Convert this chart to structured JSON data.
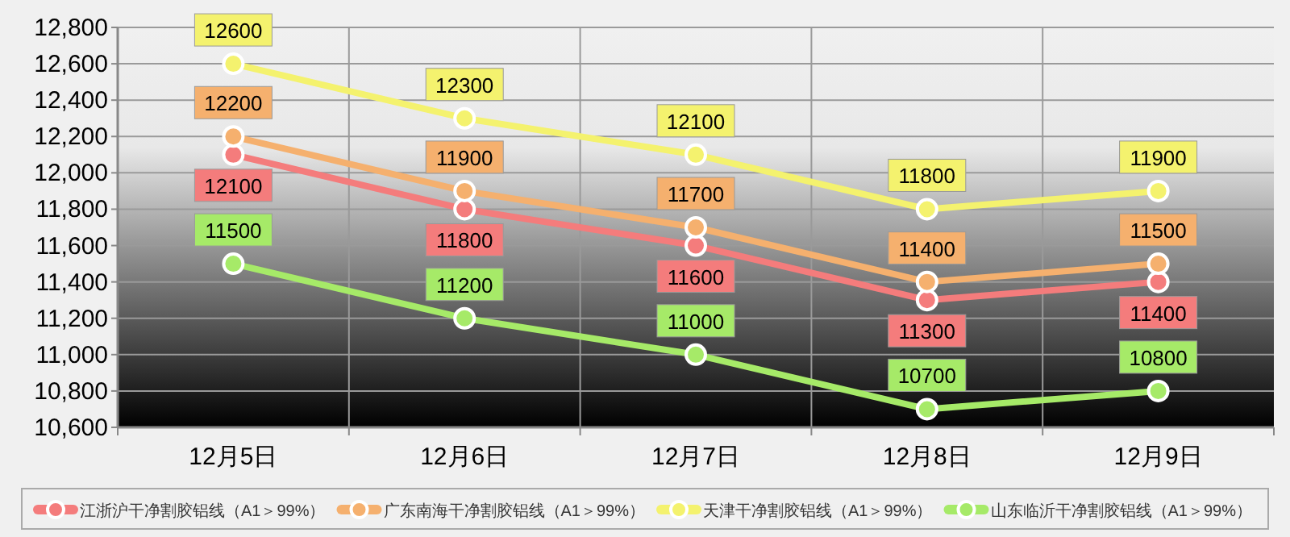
{
  "chart_data": {
    "type": "line",
    "categories": [
      "12月5日",
      "12月6日",
      "12月7日",
      "12月8日",
      "12月9日"
    ],
    "series": [
      {
        "name": "江浙沪干净割胶铝线（A1＞99%）",
        "color": "#f47c7c",
        "values": [
          12100,
          11800,
          11600,
          11300,
          11400
        ]
      },
      {
        "name": "广东南海干净割胶铝线（A1＞99%）",
        "color": "#f5b06e",
        "values": [
          12200,
          11900,
          11700,
          11400,
          11500
        ]
      },
      {
        "name": "天津干净割胶铝线（A1＞99%）",
        "color": "#f4f26e",
        "values": [
          12600,
          12300,
          12100,
          11800,
          11900
        ]
      },
      {
        "name": "山东临沂干净割胶铝线（A1＞99%）",
        "color": "#a6ea68",
        "values": [
          11500,
          11200,
          11000,
          10700,
          10800
        ]
      }
    ],
    "ylim": [
      10600,
      12800
    ],
    "yticks": [
      {
        "value": 10600,
        "label": "10,600"
      },
      {
        "value": 10800,
        "label": "10,800"
      },
      {
        "value": 11000,
        "label": "11,000"
      },
      {
        "value": 11200,
        "label": "11,200"
      },
      {
        "value": 11400,
        "label": "11,400"
      },
      {
        "value": 11600,
        "label": "11,600"
      },
      {
        "value": 11800,
        "label": "11,800"
      },
      {
        "value": 12000,
        "label": "12,000"
      },
      {
        "value": 12200,
        "label": "12,200"
      },
      {
        "value": 12400,
        "label": "12,400"
      },
      {
        "value": 12600,
        "label": "12,600"
      },
      {
        "value": 12800,
        "label": "12,800"
      }
    ],
    "grid": true,
    "legend": "bottom",
    "marker": "circle",
    "line_style": "solid",
    "data_labels": true
  }
}
